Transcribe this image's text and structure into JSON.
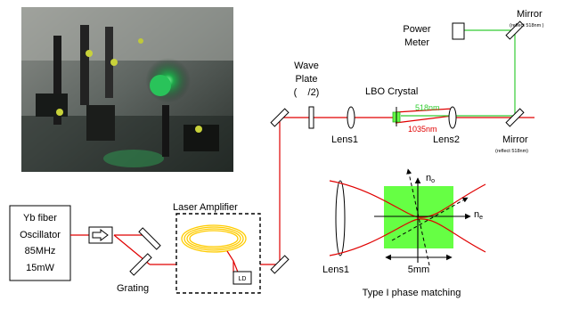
{
  "diagram": {
    "oscillator": {
      "lines": [
        "Yb fiber",
        "Oscillator",
        "85MHz",
        "15mW"
      ]
    },
    "grating_label": "Grating",
    "amplifier_label": "Laser Amplifier",
    "ld_label": "LD",
    "wave_plate_lines": [
      "Wave",
      "Plate",
      "(    /2)"
    ],
    "lbo_label": "LBO Crystal",
    "wl_518": "518nm",
    "wl_1035": "1035nm",
    "lens1_label": "Lens1",
    "lens2_label": "Lens2",
    "mirror_top_label": "Mirror",
    "mirror_top_note": "(reflect 518nm )",
    "power_meter_lines": [
      "Power",
      "Meter"
    ],
    "mirror_right_label": "Mirror",
    "mirror_right_note": "(reflect 518nm)",
    "inset": {
      "axis_no": "n",
      "axis_no_sub": "o",
      "axis_ne": "n",
      "axis_ne_sub": "e",
      "lens_label": "Lens1",
      "size_label": "5mm",
      "caption": "Type I phase matching"
    },
    "colors": {
      "ir_beam": "#e00000",
      "green_beam": "#33cc33",
      "crystal_fill": "#66ff44",
      "fiber_coil": "#ffcc00"
    }
  }
}
